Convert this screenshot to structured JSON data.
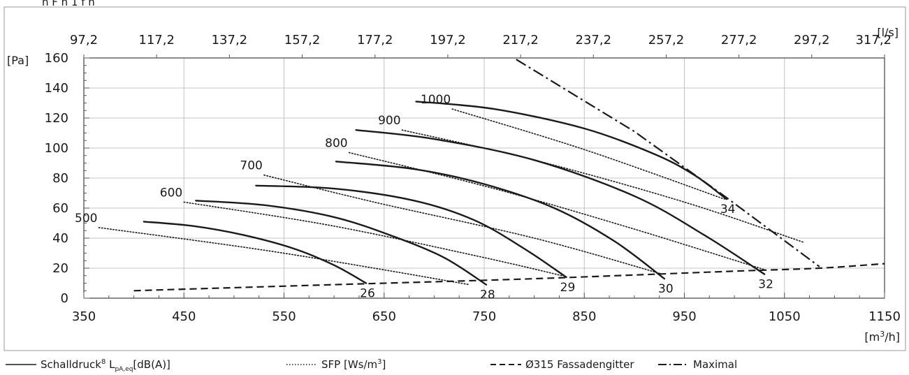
{
  "page_heading": "n   F   h   1   f   h",
  "chart_data": {
    "type": "line",
    "x_unit": "[m3/h]",
    "x_unit_base": "[m",
    "x_unit_sup": "3",
    "x_unit_end": "/h]",
    "x2_unit": "[l/s]",
    "y_unit": "[Pa]",
    "xlim": [
      350,
      1150
    ],
    "ylim": [
      0,
      160
    ],
    "x_ticks": [
      350,
      450,
      550,
      650,
      750,
      850,
      950,
      1050,
      1150
    ],
    "x2_ticks": [
      "97,2",
      "117,2",
      "137,2",
      "157,2",
      "177,2",
      "197,2",
      "217,2",
      "237,2",
      "257,2",
      "277,2",
      "297,2",
      "317,2"
    ],
    "y_ticks": [
      0,
      20,
      40,
      60,
      80,
      100,
      120,
      140,
      160
    ],
    "grid": true,
    "legend_position": "bottom",
    "sound_pressure_curves": [
      {
        "label": "26",
        "points": [
          [
            410,
            51
          ],
          [
            460,
            48
          ],
          [
            510,
            42
          ],
          [
            560,
            33
          ],
          [
            600,
            22
          ],
          [
            632,
            10
          ]
        ]
      },
      {
        "label": "28",
        "points": [
          [
            462,
            65
          ],
          [
            530,
            62
          ],
          [
            600,
            54
          ],
          [
            660,
            41
          ],
          [
            710,
            27
          ],
          [
            752,
            9
          ]
        ]
      },
      {
        "label": "29",
        "points": [
          [
            522,
            75
          ],
          [
            600,
            73
          ],
          [
            680,
            65
          ],
          [
            740,
            52
          ],
          [
            790,
            33
          ],
          [
            832,
            14
          ]
        ]
      },
      {
        "label": "30",
        "points": [
          [
            602,
            91
          ],
          [
            680,
            86
          ],
          [
            750,
            76
          ],
          [
            820,
            60
          ],
          [
            880,
            38
          ],
          [
            930,
            13
          ]
        ]
      },
      {
        "label": "32",
        "points": [
          [
            622,
            112
          ],
          [
            700,
            106
          ],
          [
            800,
            92
          ],
          [
            900,
            68
          ],
          [
            970,
            42
          ],
          [
            1030,
            16
          ]
        ]
      },
      {
        "label": "34",
        "points": [
          [
            682,
            131
          ],
          [
            760,
            126
          ],
          [
            850,
            113
          ],
          [
            920,
            96
          ],
          [
            960,
            82
          ],
          [
            992,
            66
          ]
        ]
      }
    ],
    "sfp_curves": [
      {
        "label": "500",
        "points": [
          [
            365,
            47
          ],
          [
            520,
            33
          ],
          [
            640,
            20
          ],
          [
            735,
            9
          ]
        ]
      },
      {
        "label": "600",
        "points": [
          [
            450,
            64
          ],
          [
            600,
            48
          ],
          [
            750,
            27
          ],
          [
            828,
            15
          ]
        ]
      },
      {
        "label": "700",
        "points": [
          [
            530,
            82
          ],
          [
            640,
            64
          ],
          [
            800,
            40
          ],
          [
            928,
            16
          ]
        ]
      },
      {
        "label": "800",
        "points": [
          [
            615,
            97
          ],
          [
            760,
            73
          ],
          [
            900,
            46
          ],
          [
            1030,
            19
          ]
        ]
      },
      {
        "label": "900",
        "points": [
          [
            668,
            112
          ],
          [
            800,
            92
          ],
          [
            950,
            64
          ],
          [
            1070,
            37
          ]
        ]
      },
      {
        "label": "1000",
        "points": [
          [
            718,
            126
          ],
          [
            850,
            99
          ],
          [
            990,
            66
          ]
        ]
      }
    ],
    "fassadengitter_curve": [
      [
        400,
        5
      ],
      [
        600,
        9
      ],
      [
        800,
        13
      ],
      [
        1000,
        18
      ],
      [
        1085,
        20
      ],
      [
        1150,
        23
      ]
    ],
    "maximal_curve": [
      [
        782,
        159
      ],
      [
        900,
        111
      ],
      [
        990,
        68
      ],
      [
        1085,
        21
      ]
    ],
    "legend": [
      {
        "key": "schalldruck",
        "prefix": "Schalldruck",
        "sup": "8",
        "mid": " L",
        "sub": "pA,eq",
        "suffix": "[dB(A)]",
        "style": "solid"
      },
      {
        "key": "sfp",
        "prefix": "SFP [Ws/m",
        "sup": "3",
        "suffix": "]",
        "style": "dotted"
      },
      {
        "key": "fassadengitter",
        "text": "Ø315 Fassadengitter",
        "style": "dashed"
      },
      {
        "key": "maximal",
        "text": "Maximal",
        "style": "dashdot"
      }
    ]
  }
}
